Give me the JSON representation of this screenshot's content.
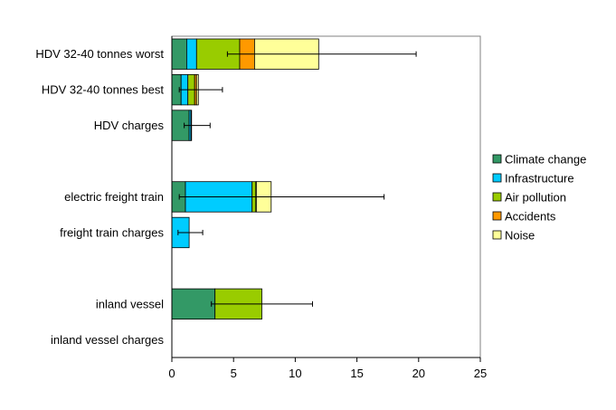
{
  "chart_data": {
    "type": "bar",
    "orientation": "horizontal",
    "stacked": true,
    "categories": [
      "HDV 32-40 tonnes worst",
      "HDV 32-40 tonnes best",
      "HDV charges",
      "",
      "electric freight train",
      "freight train charges",
      "",
      "inland vessel",
      "inland vessel charges"
    ],
    "series": [
      {
        "name": "Climate change",
        "color": "#339966",
        "values": [
          1.2,
          0.75,
          1.4,
          null,
          1.1,
          0,
          null,
          3.5,
          0
        ]
      },
      {
        "name": "Infrastructure",
        "color": "#00ccff",
        "values": [
          0.8,
          0.55,
          0.15,
          null,
          5.4,
          1.4,
          null,
          0,
          0
        ]
      },
      {
        "name": "Air pollution",
        "color": "#99cc00",
        "values": [
          3.5,
          0.55,
          0.05,
          null,
          0.3,
          0,
          null,
          3.8,
          0
        ]
      },
      {
        "name": "Accidents",
        "color": "#ff9900",
        "values": [
          1.2,
          0.15,
          0,
          null,
          0.05,
          0,
          null,
          0,
          0
        ]
      },
      {
        "name": "Noise",
        "color": "#ffff99",
        "values": [
          5.2,
          0.15,
          0,
          null,
          1.2,
          0,
          null,
          0,
          0
        ]
      }
    ],
    "error_bars": [
      {
        "low": 4.5,
        "high": 19.8
      },
      {
        "low": 0.6,
        "high": 4.1
      },
      {
        "low": 1.0,
        "high": 3.1
      },
      null,
      {
        "low": 0.6,
        "high": 17.2
      },
      {
        "low": 0.5,
        "high": 2.5
      },
      null,
      {
        "low": 3.2,
        "high": 11.4
      },
      null
    ],
    "xlim": [
      0,
      25
    ],
    "x_ticks": [
      "0",
      "5",
      "10",
      "15",
      "20",
      "25"
    ],
    "legend_position": "right",
    "grid": false
  }
}
